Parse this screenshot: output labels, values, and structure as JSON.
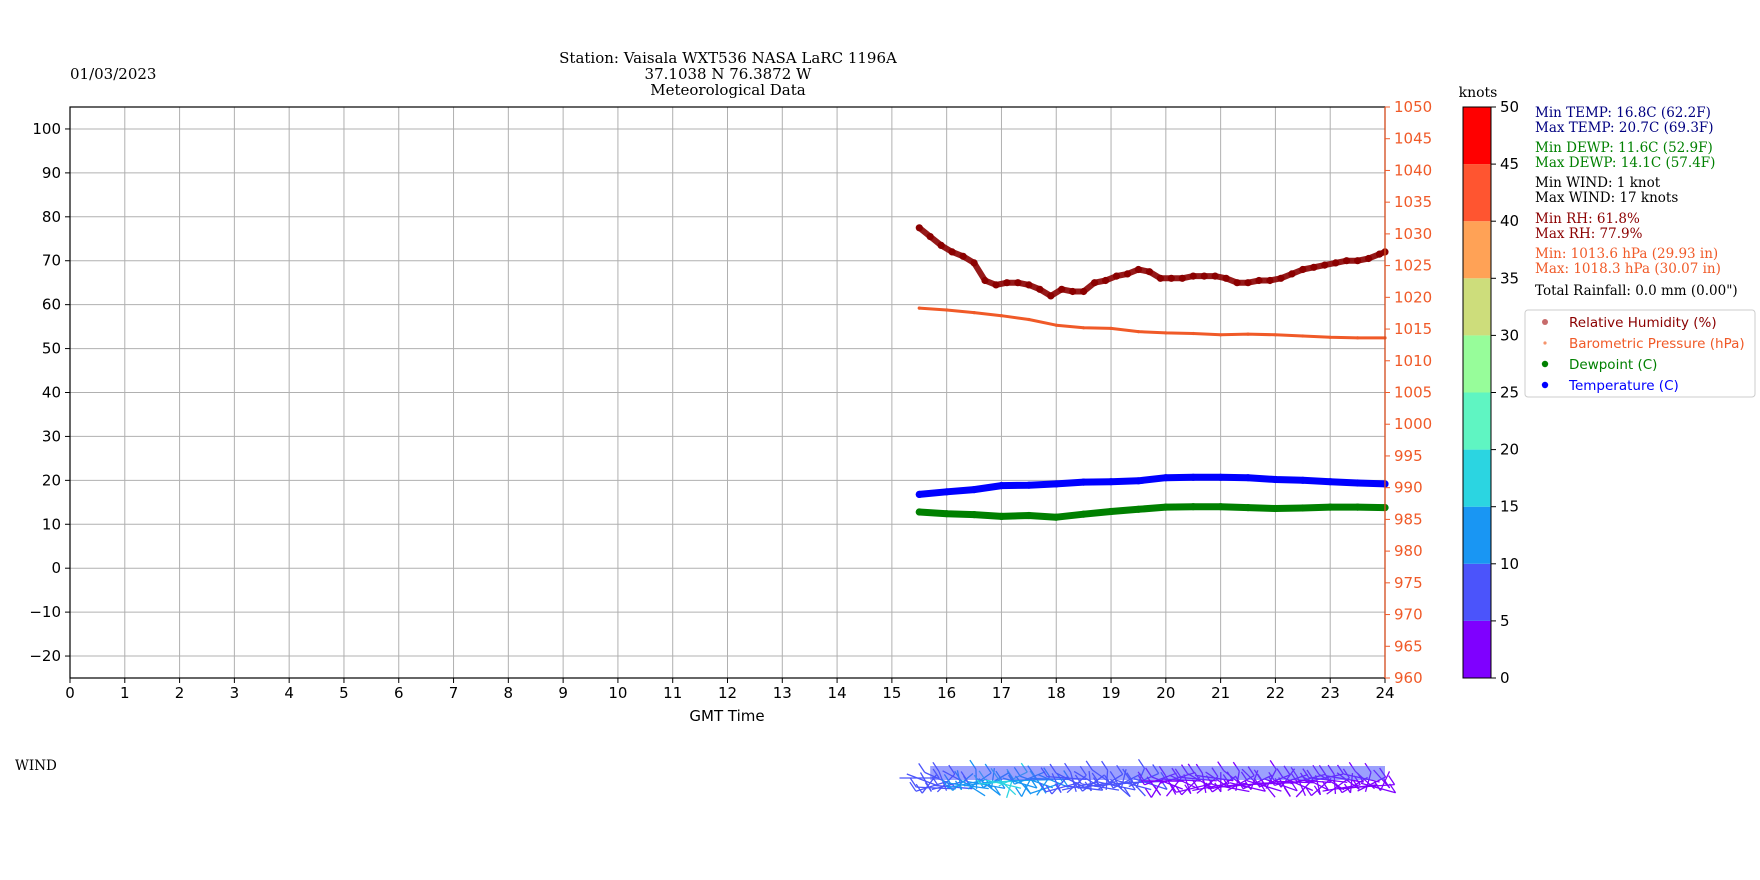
{
  "header": {
    "date": "01/03/2023",
    "title_lines": [
      "Station:  Vaisala WXT536  NASA LaRC 1196A",
      "37.1038 N 76.3872 W",
      "Meteorological Data"
    ]
  },
  "colors": {
    "header_green": "#007a00",
    "rh": "#8b0000",
    "pressure": "#f05a28",
    "dewpoint": "#008000",
    "temperature": "#0000ff",
    "min_temp_text": "#000080",
    "black": "#000000"
  },
  "chart_data": {
    "type": "line",
    "xlabel": "GMT Time",
    "xlim": [
      0,
      24
    ],
    "x_ticks": [
      "0",
      "1",
      "2",
      "3",
      "4",
      "5",
      "6",
      "7",
      "8",
      "9",
      "10",
      "11",
      "12",
      "13",
      "14",
      "15",
      "16",
      "17",
      "18",
      "19",
      "20",
      "21",
      "22",
      "23",
      "24"
    ],
    "y_left_lim": [
      -25,
      105
    ],
    "y_left_ticks": [
      "100",
      "90",
      "80",
      "70",
      "60",
      "50",
      "40",
      "30",
      "20",
      "10",
      "0",
      "−10",
      "−20"
    ],
    "y_right_lim": [
      960,
      1050
    ],
    "y_right_ticks": [
      "1050",
      "1045",
      "1040",
      "1035",
      "1030",
      "1025",
      "1020",
      "1015",
      "1010",
      "1005",
      "1000",
      "995",
      "990",
      "985",
      "980",
      "975",
      "970",
      "965",
      "960"
    ],
    "grid": true,
    "series": [
      {
        "name": "Relative Humidity (%)",
        "axis": "left",
        "color": "#8b0000",
        "x": [
          15.5,
          15.7,
          15.9,
          16.1,
          16.3,
          16.5,
          16.7,
          16.9,
          17.1,
          17.3,
          17.5,
          17.7,
          17.9,
          18.1,
          18.3,
          18.5,
          18.7,
          18.9,
          19.1,
          19.3,
          19.5,
          19.7,
          19.9,
          20.1,
          20.3,
          20.5,
          20.7,
          20.9,
          21.1,
          21.3,
          21.5,
          21.7,
          21.9,
          22.1,
          22.3,
          22.5,
          22.7,
          22.9,
          23.1,
          23.3,
          23.5,
          23.7,
          23.9,
          24.0
        ],
        "y": [
          77.5,
          75.5,
          73.5,
          72.0,
          71.0,
          69.5,
          65.5,
          64.5,
          65.0,
          65.0,
          64.5,
          63.5,
          62.0,
          63.5,
          63.0,
          63.0,
          65.0,
          65.5,
          66.5,
          67.0,
          68.0,
          67.5,
          66.0,
          66.0,
          66.0,
          66.5,
          66.5,
          66.5,
          66.0,
          65.0,
          65.0,
          65.5,
          65.5,
          66.0,
          67.0,
          68.0,
          68.5,
          69.0,
          69.5,
          70.0,
          70.0,
          70.5,
          71.5,
          72.0
        ]
      },
      {
        "name": "Barometric Pressure (hPa)",
        "axis": "right",
        "color": "#f05a28",
        "x": [
          15.5,
          16.0,
          16.5,
          17.0,
          17.5,
          18.0,
          18.5,
          19.0,
          19.5,
          20.0,
          20.5,
          21.0,
          21.5,
          22.0,
          22.5,
          23.0,
          23.5,
          24.0
        ],
        "y": [
          1018.3,
          1018.0,
          1017.6,
          1017.1,
          1016.5,
          1015.6,
          1015.2,
          1015.1,
          1014.6,
          1014.4,
          1014.3,
          1014.1,
          1014.2,
          1014.1,
          1013.9,
          1013.7,
          1013.6,
          1013.6
        ]
      },
      {
        "name": "Dewpoint (C)",
        "axis": "left",
        "color": "#008000",
        "x": [
          15.5,
          16.0,
          16.5,
          17.0,
          17.5,
          18.0,
          18.5,
          19.0,
          19.5,
          20.0,
          20.5,
          21.0,
          21.5,
          22.0,
          22.5,
          23.0,
          23.5,
          24.0
        ],
        "y": [
          12.8,
          12.4,
          12.2,
          11.8,
          12.0,
          11.6,
          12.3,
          12.9,
          13.4,
          13.9,
          14.0,
          14.0,
          13.8,
          13.6,
          13.7,
          13.9,
          13.9,
          13.8
        ]
      },
      {
        "name": "Temperature (C)",
        "axis": "left",
        "color": "#0000ff",
        "x": [
          15.5,
          16.0,
          16.5,
          17.0,
          17.5,
          18.0,
          18.5,
          19.0,
          19.5,
          20.0,
          20.5,
          21.0,
          21.5,
          22.0,
          22.5,
          23.0,
          23.5,
          24.0
        ],
        "y": [
          16.8,
          17.4,
          17.9,
          18.8,
          18.9,
          19.2,
          19.6,
          19.7,
          19.9,
          20.6,
          20.7,
          20.7,
          20.6,
          20.2,
          20.0,
          19.7,
          19.4,
          19.2
        ]
      }
    ],
    "wind": {
      "label": "WIND",
      "unit": "knots",
      "colorbar_ticks": [
        "50",
        "45",
        "40",
        "35",
        "30",
        "25",
        "20",
        "15",
        "10",
        "5",
        "0"
      ],
      "colorbar_bands": [
        {
          "from": 0,
          "to": 5,
          "color": "#7f00ff"
        },
        {
          "from": 5,
          "to": 10,
          "color": "#4b54fb"
        },
        {
          "from": 10,
          "to": 15,
          "color": "#1996f3"
        },
        {
          "from": 15,
          "to": 20,
          "color": "#2bd5e1"
        },
        {
          "from": 20,
          "to": 25,
          "color": "#5ff5c2"
        },
        {
          "from": 25,
          "to": 30,
          "color": "#97fd9a"
        },
        {
          "from": 30,
          "to": 35,
          "color": "#cddd7b"
        },
        {
          "from": 35,
          "to": 40,
          "color": "#ffa256"
        },
        {
          "from": 40,
          "to": 45,
          "color": "#ff5530"
        },
        {
          "from": 45,
          "to": 50,
          "color": "#ff0000"
        }
      ],
      "x_range": [
        15.5,
        24.0
      ],
      "speeds_sample": [
        6,
        9,
        11,
        13,
        15,
        12,
        10,
        9,
        8,
        7,
        6,
        5,
        4,
        4,
        3,
        4,
        4,
        3,
        3,
        4,
        3,
        4,
        3,
        3
      ]
    }
  },
  "stats": {
    "min_temp": "Min TEMP: 16.8C (62.2F)",
    "max_temp": "Max TEMP: 20.7C (69.3F)",
    "min_dewp": "Min DEWP: 11.6C (52.9F)",
    "max_dewp": "Max DEWP: 14.1C (57.4F)",
    "min_wind": "Min WIND: 1 knot",
    "max_wind": "Max WIND: 17 knots",
    "min_rh": "Min RH: 61.8%",
    "max_rh": "Max RH: 77.9%",
    "min_pres": "Min: 1013.6 hPa (29.93 in)",
    "max_pres": "Max: 1018.3 hPa (30.07 in)",
    "rainfall": "Total Rainfall: 0.0 mm (0.00\")"
  },
  "legend": {
    "items": [
      {
        "label": "Relative Humidity (%)",
        "color": "#c76b6b",
        "text_color": "#8b0000"
      },
      {
        "label": "Barometric Pressure (hPa)",
        "color": "#f5946c",
        "text_color": "#f05a28"
      },
      {
        "label": "Dewpoint (C)",
        "color": "#008000",
        "text_color": "#008000"
      },
      {
        "label": "Temperature (C)",
        "color": "#0000ff",
        "text_color": "#0000ff"
      }
    ]
  }
}
